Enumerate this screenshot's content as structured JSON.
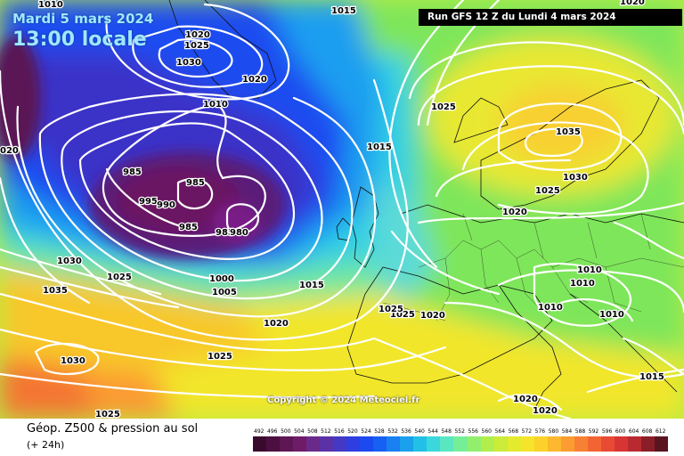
{
  "overlay": {
    "date_line": "Mardi 5 mars 2024",
    "time_line": "13:00 locale"
  },
  "run_info": "Run GFS 12 Z du Lundi 4 mars 2024",
  "copyright": "Copyright © 2024 Meteociel.fr",
  "legend": {
    "title": "Géop. Z500 & pression au sol",
    "subtitle": "(+ 24h)",
    "scale_values": [
      "492",
      "496",
      "500",
      "504",
      "508",
      "512",
      "516",
      "520",
      "524",
      "528",
      "532",
      "536",
      "540",
      "544",
      "548",
      "552",
      "556",
      "560",
      "564",
      "568",
      "572",
      "576",
      "580",
      "584",
      "588",
      "592",
      "596",
      "600",
      "604",
      "608",
      "612"
    ],
    "scale_colors": [
      "#3a0a2e",
      "#4c1040",
      "#5e1654",
      "#6e1c68",
      "#6a2a8a",
      "#5a32a6",
      "#4438c4",
      "#2f3ee0",
      "#1a4af0",
      "#1660f4",
      "#1880f0",
      "#1aa0ec",
      "#22c0e6",
      "#3ad8dc",
      "#5ae6c0",
      "#76ee98",
      "#92ef6e",
      "#b0ee4e",
      "#ccec3a",
      "#e4ea2e",
      "#f6e42a",
      "#fcd22a",
      "#fcb82e",
      "#fc9c32",
      "#f88034",
      "#f26434",
      "#e84a34",
      "#d83434",
      "#b82a30",
      "#8a1e28",
      "#5a1420"
    ]
  },
  "isobars": [
    {
      "value": "1010",
      "color": "#ffffff"
    },
    {
      "value": "1015",
      "color": "#ffffff"
    },
    {
      "value": "1020",
      "color": "#ffffff"
    },
    {
      "value": "1025",
      "color": "#ffffff"
    },
    {
      "value": "1030",
      "color": "#ffffff"
    },
    {
      "value": "1020",
      "color": "#ffffff"
    },
    {
      "value": "1010",
      "color": "#ffffff"
    },
    {
      "value": "020",
      "color": "#ffffff"
    },
    {
      "value": "985",
      "color": "#ffffff"
    },
    {
      "value": "985",
      "color": "#ffffff"
    },
    {
      "value": "995",
      "color": "#ffffff"
    },
    {
      "value": "990",
      "color": "#ffffff"
    },
    {
      "value": "985",
      "color": "#ffffff"
    },
    {
      "value": "985",
      "color": "#ffffff"
    },
    {
      "value": "980",
      "color": "#ffffff"
    },
    {
      "value": "1000",
      "color": "#ffffff"
    },
    {
      "value": "1005",
      "color": "#ffffff"
    },
    {
      "value": "1015",
      "color": "#ffffff"
    },
    {
      "value": "1015",
      "color": "#ffffff"
    },
    {
      "value": "1025",
      "color": "#ffffff"
    },
    {
      "value": "1030",
      "color": "#ffffff"
    },
    {
      "value": "1035",
      "color": "#ffffff"
    },
    {
      "value": "1025",
      "color": "#ffffff"
    },
    {
      "value": "1020",
      "color": "#ffffff"
    },
    {
      "value": "1030",
      "color": "#ffffff"
    },
    {
      "value": "1025",
      "color": "#ffffff"
    },
    {
      "value": "1020",
      "color": "#ffffff"
    },
    {
      "value": "1015",
      "color": "#ffffff"
    },
    {
      "value": "1025",
      "color": "#ffffff"
    },
    {
      "value": "1035",
      "color": "#ffffff"
    },
    {
      "value": "1030",
      "color": "#ffffff"
    },
    {
      "value": "1025",
      "color": "#ffffff"
    },
    {
      "value": "1020",
      "color": "#ffffff"
    },
    {
      "value": "1010",
      "color": "#ffffff"
    },
    {
      "value": "1010",
      "color": "#ffffff"
    },
    {
      "value": "1010",
      "color": "#ffffff"
    },
    {
      "value": "1010",
      "color": "#ffffff"
    },
    {
      "value": "1025",
      "color": "#ffffff"
    },
    {
      "value": "1020",
      "color": "#ffffff"
    },
    {
      "value": "1015",
      "color": "#ffffff"
    },
    {
      "value": "1020",
      "color": "#ffffff"
    },
    {
      "value": "1020",
      "color": "#ffffff"
    },
    {
      "value": "1025",
      "color": "#ffffff"
    }
  ]
}
